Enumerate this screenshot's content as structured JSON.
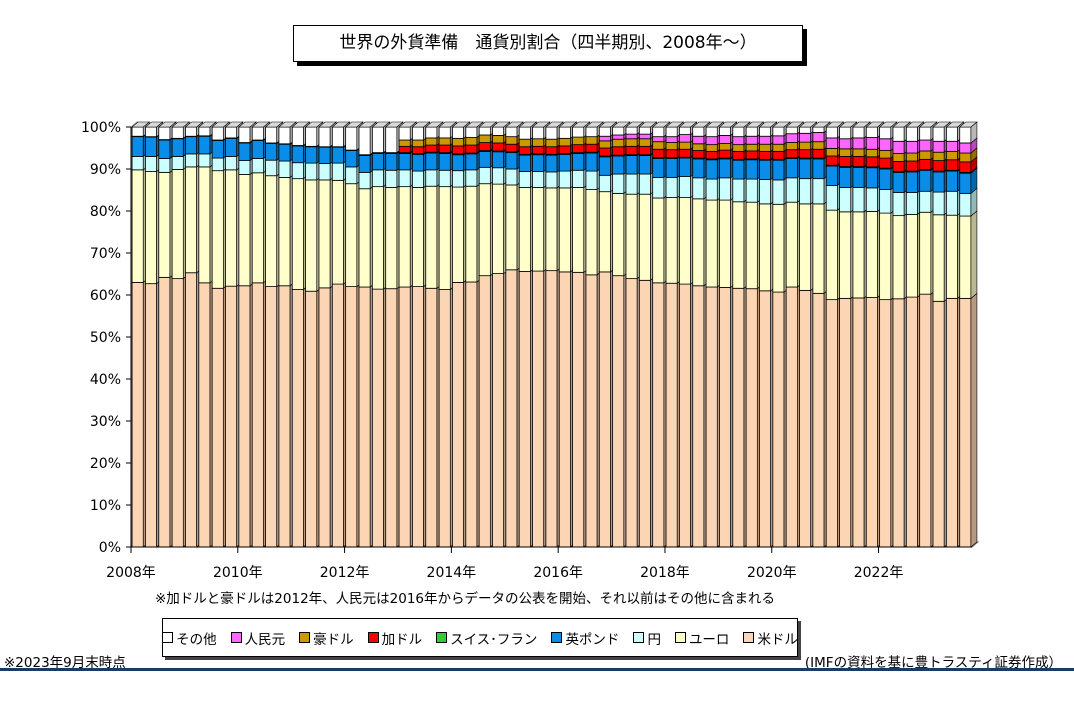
{
  "title": "世界の外貨準備　通貨別割合（四半期別、2008年～）",
  "note_top": "※加ドルと豪ドルは2012年、人民元は2016年からデータの公表を開始、それ以前はその他に含まれる",
  "note_bottom": "※2023年9月末時点",
  "source": "(IMFの資料を基に豊トラスティ証券作成）",
  "chart_data": {
    "type": "bar",
    "stacked": true,
    "percent": true,
    "y_ticks": [
      "0%",
      "10%",
      "20%",
      "30%",
      "40%",
      "50%",
      "60%",
      "70%",
      "80%",
      "90%",
      "100%"
    ],
    "ylim": [
      0,
      100
    ],
    "x_tick_labels": [
      "2008年",
      "2010年",
      "2012年",
      "2014年",
      "2016年",
      "2018年",
      "2020年",
      "2022年"
    ],
    "legend": [
      "その他",
      "人民元",
      "豪ドル",
      "加ドル",
      "スイス･フラン",
      "英ポンド",
      "円",
      "ユーロ",
      "米ドル"
    ],
    "colors": {
      "usd": "#fcd5b5",
      "eur": "#ffffcc",
      "jpy": "#ccffff",
      "gbp": "#0a8de8",
      "chf": "#33cc33",
      "cad": "#ff0000",
      "aud": "#cc9900",
      "cny": "#ff66ff",
      "other": "#ffffff"
    },
    "quarters": [
      "2008Q1",
      "2008Q2",
      "2008Q3",
      "2008Q4",
      "2009Q1",
      "2009Q2",
      "2009Q3",
      "2009Q4",
      "2010Q1",
      "2010Q2",
      "2010Q3",
      "2010Q4",
      "2011Q1",
      "2011Q2",
      "2011Q3",
      "2011Q4",
      "2012Q1",
      "2012Q2",
      "2012Q3",
      "2012Q4",
      "2013Q1",
      "2013Q2",
      "2013Q3",
      "2013Q4",
      "2014Q1",
      "2014Q2",
      "2014Q3",
      "2014Q4",
      "2015Q1",
      "2015Q2",
      "2015Q3",
      "2015Q4",
      "2016Q1",
      "2016Q2",
      "2016Q3",
      "2016Q4",
      "2017Q1",
      "2017Q2",
      "2017Q3",
      "2017Q4",
      "2018Q1",
      "2018Q2",
      "2018Q3",
      "2018Q4",
      "2019Q1",
      "2019Q2",
      "2019Q3",
      "2019Q4",
      "2020Q1",
      "2020Q2",
      "2020Q3",
      "2020Q4",
      "2021Q1",
      "2021Q2",
      "2021Q3",
      "2021Q4",
      "2022Q1",
      "2022Q2",
      "2022Q3",
      "2022Q4",
      "2023Q1",
      "2023Q2",
      "2023Q3"
    ],
    "series": [
      {
        "key": "usd",
        "values": [
          63.0,
          62.7,
          64.2,
          63.9,
          65.3,
          62.9,
          61.6,
          62.1,
          62.2,
          62.9,
          62.0,
          62.2,
          61.3,
          60.9,
          61.7,
          62.6,
          62.0,
          61.9,
          61.4,
          61.5,
          61.9,
          62.0,
          61.6,
          61.3,
          63.0,
          63.1,
          64.6,
          65.1,
          66.0,
          65.6,
          65.7,
          65.8,
          65.5,
          65.4,
          64.8,
          65.5,
          64.6,
          63.9,
          63.5,
          62.9,
          62.8,
          62.6,
          62.2,
          61.9,
          61.8,
          61.6,
          61.5,
          61.0,
          60.7,
          61.9,
          61.1,
          60.4,
          58.9,
          59.2,
          59.3,
          59.4,
          58.9,
          59.1,
          59.5,
          60.2,
          58.5,
          59.2,
          59.2
        ]
      },
      {
        "key": "eur",
        "values": [
          26.8,
          26.7,
          25.0,
          26.0,
          25.2,
          27.6,
          28.0,
          27.7,
          26.5,
          26.2,
          26.4,
          25.8,
          26.4,
          26.5,
          25.7,
          24.7,
          24.5,
          23.4,
          24.4,
          24.1,
          23.9,
          23.6,
          24.3,
          24.5,
          22.7,
          22.8,
          21.9,
          21.3,
          20.2,
          20.0,
          19.9,
          19.7,
          20.0,
          20.2,
          20.3,
          19.1,
          19.6,
          20.1,
          20.5,
          20.2,
          20.4,
          20.6,
          20.7,
          20.7,
          20.8,
          20.6,
          20.6,
          20.7,
          20.9,
          20.2,
          20.6,
          21.3,
          21.3,
          20.6,
          20.5,
          20.5,
          20.6,
          19.8,
          19.7,
          19.5,
          20.6,
          19.8,
          19.6
        ]
      },
      {
        "key": "jpy",
        "values": [
          3.2,
          3.6,
          3.3,
          3.1,
          3.1,
          3.1,
          3.0,
          3.2,
          3.3,
          3.4,
          3.7,
          3.9,
          3.8,
          4.0,
          3.9,
          4.1,
          4.0,
          3.9,
          4.0,
          4.1,
          4.0,
          3.9,
          3.9,
          3.9,
          3.9,
          3.9,
          3.9,
          3.9,
          3.8,
          3.8,
          3.8,
          3.8,
          4.0,
          4.1,
          4.4,
          3.9,
          4.6,
          4.8,
          4.8,
          4.9,
          4.8,
          5.0,
          5.0,
          5.0,
          5.3,
          5.4,
          5.5,
          5.8,
          5.8,
          5.8,
          6.0,
          6.0,
          5.9,
          5.8,
          5.8,
          5.6,
          5.6,
          5.5,
          5.2,
          5.0,
          5.4,
          5.7,
          5.4
        ]
      },
      {
        "key": "gbp",
        "values": [
          4.7,
          4.6,
          4.4,
          4.2,
          4.1,
          4.2,
          4.2,
          4.3,
          4.2,
          4.3,
          4.0,
          4.0,
          4.0,
          3.9,
          3.9,
          3.8,
          3.9,
          4.0,
          3.9,
          4.0,
          3.9,
          4.0,
          4.0,
          4.0,
          3.8,
          3.8,
          3.8,
          3.8,
          3.9,
          3.9,
          4.0,
          4.0,
          4.0,
          4.0,
          4.3,
          4.4,
          4.3,
          4.4,
          4.4,
          4.5,
          4.5,
          4.4,
          4.5,
          4.6,
          4.5,
          4.5,
          4.6,
          4.6,
          4.7,
          4.6,
          4.7,
          4.7,
          4.6,
          4.8,
          4.8,
          4.8,
          4.9,
          4.8,
          4.9,
          5.0,
          4.8,
          4.8,
          4.8
        ]
      },
      {
        "key": "chf",
        "values": [
          0.1,
          0.1,
          0.1,
          0.1,
          0.1,
          0.1,
          0.1,
          0.1,
          0.1,
          0.1,
          0.1,
          0.1,
          0.1,
          0.1,
          0.1,
          0.1,
          0.1,
          0.2,
          0.2,
          0.2,
          0.2,
          0.2,
          0.2,
          0.2,
          0.2,
          0.2,
          0.2,
          0.2,
          0.2,
          0.2,
          0.2,
          0.2,
          0.2,
          0.2,
          0.2,
          0.2,
          0.2,
          0.2,
          0.2,
          0.2,
          0.2,
          0.2,
          0.2,
          0.2,
          0.2,
          0.2,
          0.2,
          0.2,
          0.2,
          0.2,
          0.2,
          0.2,
          0.2,
          0.2,
          0.2,
          0.2,
          0.2,
          0.2,
          0.2,
          0.2,
          0.2,
          0.2,
          0.2
        ]
      },
      {
        "key": "cad",
        "values": [
          0,
          0,
          0,
          0,
          0,
          0,
          0,
          0,
          0,
          0,
          0,
          0,
          0,
          0,
          0,
          0,
          0,
          0,
          0,
          0,
          1.5,
          1.6,
          1.7,
          1.8,
          1.9,
          1.9,
          1.9,
          1.9,
          1.8,
          1.8,
          1.8,
          1.8,
          1.8,
          1.9,
          1.9,
          1.9,
          2.0,
          2.0,
          2.0,
          2.0,
          1.9,
          1.9,
          1.8,
          1.8,
          1.9,
          1.9,
          1.9,
          1.9,
          1.9,
          1.9,
          2.0,
          2.1,
          2.2,
          2.4,
          2.4,
          2.4,
          2.4,
          2.4,
          2.4,
          2.4,
          2.5,
          2.5,
          2.5
        ]
      },
      {
        "key": "aud",
        "values": [
          0,
          0,
          0,
          0,
          0,
          0,
          0,
          0,
          0,
          0,
          0,
          0,
          0,
          0,
          0,
          0,
          0,
          0,
          0,
          0,
          1.5,
          1.6,
          1.7,
          1.7,
          1.8,
          1.8,
          1.8,
          1.8,
          1.8,
          1.8,
          1.8,
          1.8,
          1.8,
          1.8,
          1.8,
          1.7,
          1.8,
          1.8,
          1.8,
          1.8,
          1.7,
          1.7,
          1.6,
          1.6,
          1.6,
          1.6,
          1.6,
          1.7,
          1.7,
          1.7,
          1.8,
          1.8,
          1.8,
          1.8,
          1.8,
          1.8,
          1.8,
          1.9,
          1.9,
          2.0,
          2.0,
          2.0,
          2.1
        ]
      },
      {
        "key": "cny",
        "values": [
          0,
          0,
          0,
          0,
          0,
          0,
          0,
          0,
          0,
          0,
          0,
          0,
          0,
          0,
          0,
          0,
          0,
          0,
          0,
          0,
          0,
          0,
          0,
          0,
          0,
          0,
          0,
          0,
          0,
          0,
          0,
          0,
          0,
          0,
          0,
          1.1,
          1.0,
          1.1,
          1.1,
          1.2,
          1.4,
          1.8,
          1.8,
          1.9,
          1.9,
          1.9,
          1.9,
          1.9,
          2.0,
          2.1,
          2.1,
          2.2,
          2.5,
          2.4,
          2.6,
          2.8,
          2.8,
          2.9,
          2.8,
          2.6,
          2.6,
          2.4,
          2.4
        ]
      }
    ]
  }
}
